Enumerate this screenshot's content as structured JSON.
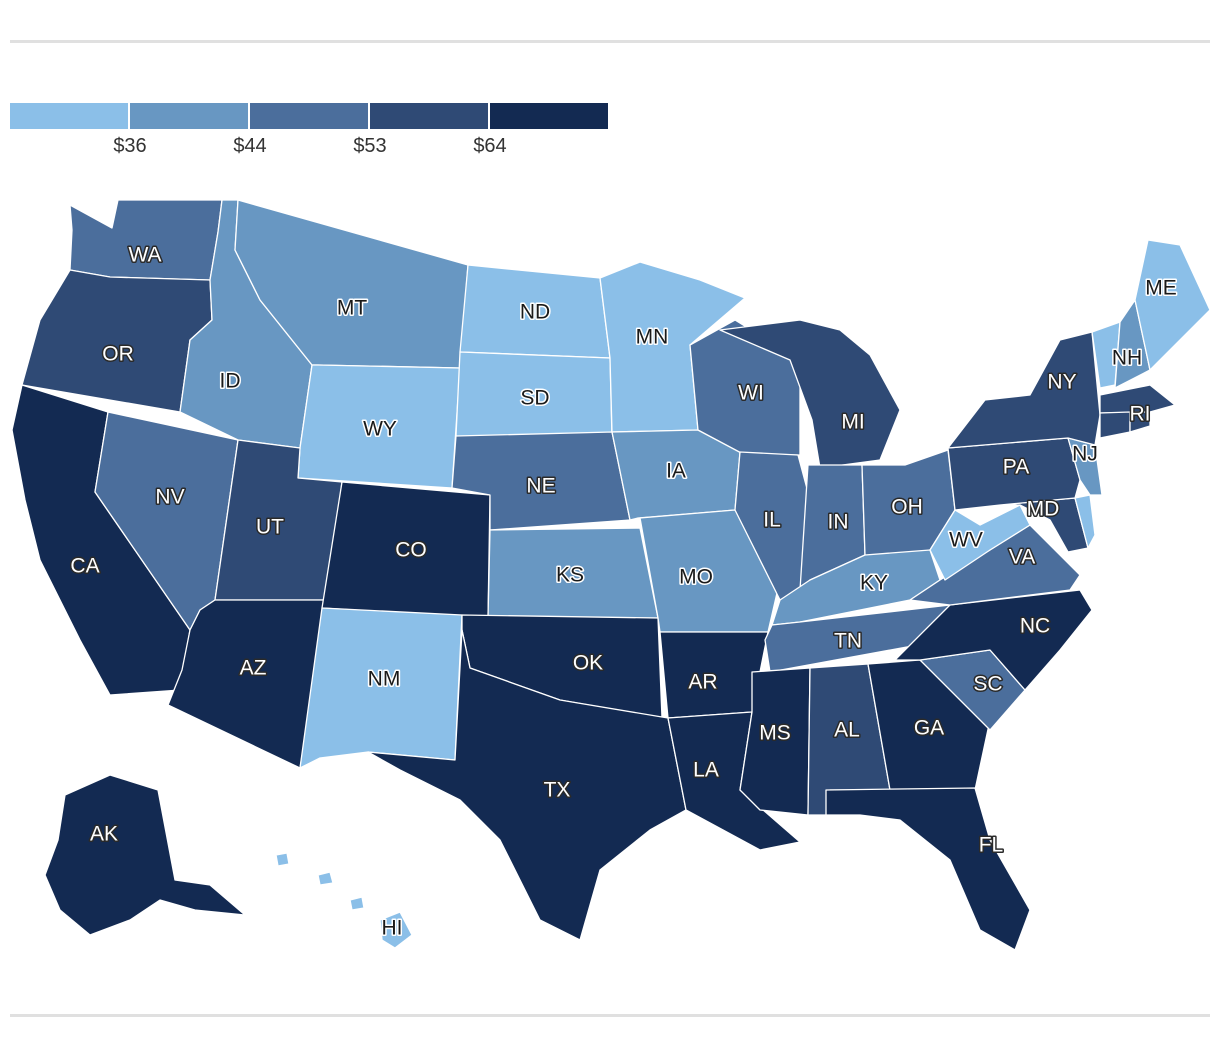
{
  "colors": {
    "bin1": "#8bbfe8",
    "bin2": "#6897c2",
    "bin3": "#4b6e9c",
    "bin4": "#2f4a75",
    "bin5": "#132a52"
  },
  "legend": {
    "bins": [
      "bin1",
      "bin2",
      "bin3",
      "bin4",
      "bin5"
    ],
    "thresholds": [
      "$36",
      "$44",
      "$53",
      "$64"
    ]
  },
  "states": [
    {
      "abbr": "WA",
      "bin": "bin3"
    },
    {
      "abbr": "OR",
      "bin": "bin4"
    },
    {
      "abbr": "CA",
      "bin": "bin5"
    },
    {
      "abbr": "NV",
      "bin": "bin3"
    },
    {
      "abbr": "ID",
      "bin": "bin2"
    },
    {
      "abbr": "MT",
      "bin": "bin2"
    },
    {
      "abbr": "WY",
      "bin": "bin1"
    },
    {
      "abbr": "UT",
      "bin": "bin4"
    },
    {
      "abbr": "AZ",
      "bin": "bin5"
    },
    {
      "abbr": "CO",
      "bin": "bin5"
    },
    {
      "abbr": "NM",
      "bin": "bin1"
    },
    {
      "abbr": "ND",
      "bin": "bin1"
    },
    {
      "abbr": "SD",
      "bin": "bin1"
    },
    {
      "abbr": "NE",
      "bin": "bin3"
    },
    {
      "abbr": "KS",
      "bin": "bin2"
    },
    {
      "abbr": "OK",
      "bin": "bin5"
    },
    {
      "abbr": "TX",
      "bin": "bin5"
    },
    {
      "abbr": "MN",
      "bin": "bin1"
    },
    {
      "abbr": "IA",
      "bin": "bin2"
    },
    {
      "abbr": "MO",
      "bin": "bin2"
    },
    {
      "abbr": "AR",
      "bin": "bin5"
    },
    {
      "abbr": "LA",
      "bin": "bin5"
    },
    {
      "abbr": "WI",
      "bin": "bin3"
    },
    {
      "abbr": "IL",
      "bin": "bin3"
    },
    {
      "abbr": "MI",
      "bin": "bin4"
    },
    {
      "abbr": "IN",
      "bin": "bin3"
    },
    {
      "abbr": "OH",
      "bin": "bin3"
    },
    {
      "abbr": "KY",
      "bin": "bin2"
    },
    {
      "abbr": "TN",
      "bin": "bin3"
    },
    {
      "abbr": "MS",
      "bin": "bin5"
    },
    {
      "abbr": "AL",
      "bin": "bin4"
    },
    {
      "abbr": "GA",
      "bin": "bin5"
    },
    {
      "abbr": "FL",
      "bin": "bin5"
    },
    {
      "abbr": "SC",
      "bin": "bin3"
    },
    {
      "abbr": "NC",
      "bin": "bin5"
    },
    {
      "abbr": "VA",
      "bin": "bin3"
    },
    {
      "abbr": "WV",
      "bin": "bin1"
    },
    {
      "abbr": "MD",
      "bin": "bin4"
    },
    {
      "abbr": "DE",
      "bin": "bin1"
    },
    {
      "abbr": "PA",
      "bin": "bin4"
    },
    {
      "abbr": "NJ",
      "bin": "bin2"
    },
    {
      "abbr": "NY",
      "bin": "bin4"
    },
    {
      "abbr": "CT",
      "bin": "bin4"
    },
    {
      "abbr": "RI",
      "bin": "bin4"
    },
    {
      "abbr": "MA",
      "bin": "bin4"
    },
    {
      "abbr": "VT",
      "bin": "bin1"
    },
    {
      "abbr": "NH",
      "bin": "bin2"
    },
    {
      "abbr": "ME",
      "bin": "bin1"
    },
    {
      "abbr": "AK",
      "bin": "bin5"
    },
    {
      "abbr": "HI",
      "bin": "bin1"
    }
  ]
}
